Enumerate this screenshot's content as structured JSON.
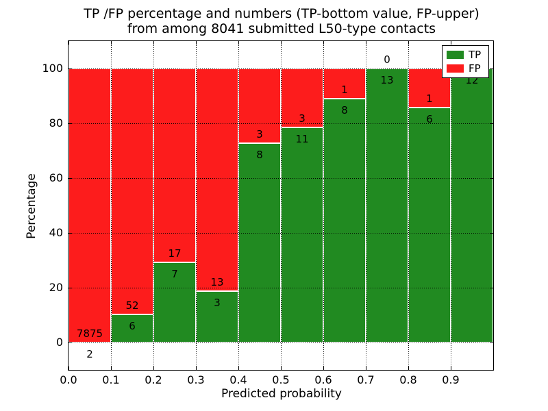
{
  "figure": {
    "title_line1": "TP /FP percentage and numbers (TP-bottom value, FP-upper)",
    "title_line2": "from among 8041 submitted L50-type contacts"
  },
  "chart_data": {
    "type": "bar",
    "stacked": true,
    "title": "TP /FP percentage and numbers (TP-bottom value, FP-upper) from among 8041 submitted L50-type contacts",
    "xlabel": "Predicted probability",
    "ylabel": "Percentage",
    "xlim": [
      0.0,
      1.0
    ],
    "ylim": [
      -10,
      110
    ],
    "bar_width": 0.1,
    "bin_starts": [
      0.0,
      0.1,
      0.2,
      0.3,
      0.4,
      0.5,
      0.6,
      0.7,
      0.8,
      0.9
    ],
    "x_tick_labels": [
      "0.0",
      "0.1",
      "0.2",
      "0.3",
      "0.4",
      "0.5",
      "0.6",
      "0.7",
      "0.8",
      "0.9"
    ],
    "y_tick_values": [
      0,
      20,
      40,
      60,
      80,
      100
    ],
    "grid_style": "dotted",
    "total_contacts": 8041,
    "series": [
      {
        "name": "TP",
        "color": "#218a21",
        "values": [
          2,
          6,
          7,
          3,
          8,
          11,
          8,
          13,
          6,
          12
        ]
      },
      {
        "name": "FP",
        "color": "#fd1c1c",
        "values": [
          7875,
          52,
          17,
          13,
          3,
          3,
          1,
          0,
          1,
          0
        ]
      }
    ],
    "tp_percentages": [
      0.03,
      10.34,
      29.17,
      18.75,
      72.73,
      78.57,
      88.89,
      100.0,
      85.71,
      100.0
    ],
    "legend": {
      "position": "upper right",
      "entries": [
        "TP",
        "FP"
      ]
    }
  },
  "colors": {
    "tp_green": "#218a21",
    "fp_red": "#fd1c1c",
    "axis": "#000000",
    "grid": "#000000",
    "background": "#ffffff"
  }
}
